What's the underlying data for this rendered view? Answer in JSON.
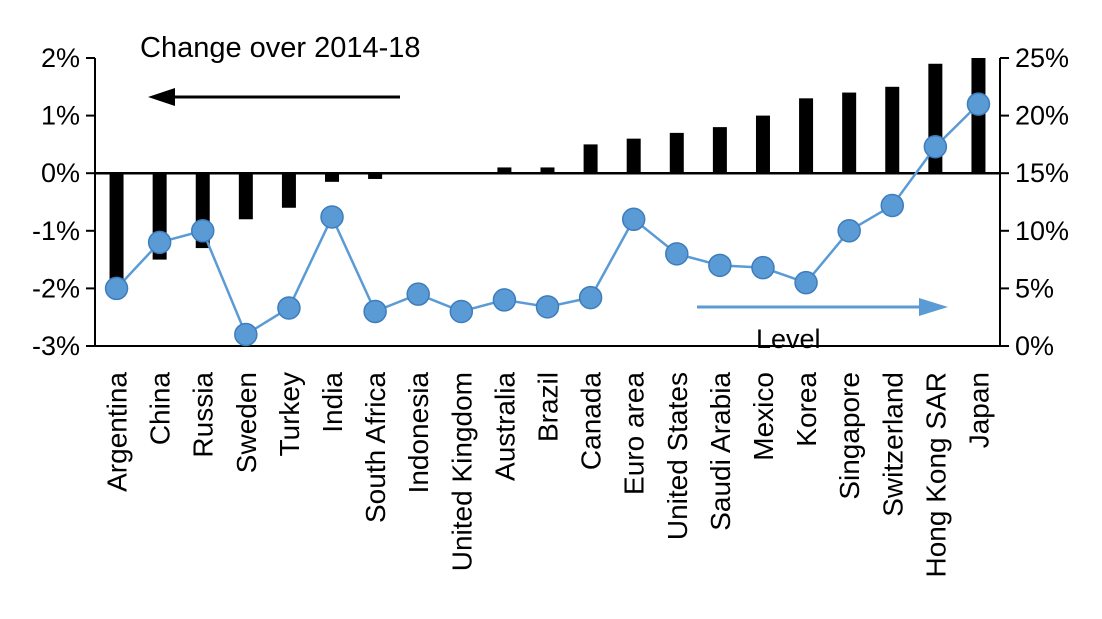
{
  "chart_data": {
    "type": "bar",
    "subtype": "bar-line-combo",
    "title": "",
    "categories": [
      "Argentina",
      "China",
      "Russia",
      "Sweden",
      "Turkey",
      "India",
      "South Africa",
      "Indonesia",
      "United Kingdom",
      "Australia",
      "Brazil",
      "Canada",
      "Euro area",
      "United States",
      "Saudi Arabia",
      "Mexico",
      "Korea",
      "Singapore",
      "Switzerland",
      "Hong Kong SAR",
      "Japan"
    ],
    "series": [
      {
        "name": "Change over 2014-18",
        "type": "bar",
        "axis": "left",
        "color": "#000000",
        "values": [
          -1.9,
          -1.5,
          -1.3,
          -0.8,
          -0.6,
          -0.15,
          -0.1,
          0,
          0,
          0.1,
          0.1,
          0.5,
          0.6,
          0.7,
          0.8,
          1.0,
          1.3,
          1.4,
          1.5,
          1.9,
          2.0
        ]
      },
      {
        "name": "Level",
        "type": "line",
        "axis": "right",
        "color": "#5B9BD5",
        "values": [
          5.0,
          9.0,
          10.0,
          1.0,
          3.3,
          11.2,
          3.0,
          4.5,
          3.0,
          4.0,
          3.4,
          4.2,
          11.0,
          8.0,
          7.0,
          6.8,
          5.5,
          10.0,
          12.2,
          17.3,
          21.0
        ]
      }
    ],
    "left_axis": {
      "ticks": [
        "2%",
        "1%",
        "0%",
        "-1%",
        "-2%",
        "-3%"
      ],
      "values": [
        2,
        1,
        0,
        -1,
        -2,
        -3
      ],
      "min": -3,
      "max": 2
    },
    "right_axis": {
      "ticks": [
        "25%",
        "20%",
        "15%",
        "10%",
        "5%",
        "0%"
      ],
      "values": [
        25,
        20,
        15,
        10,
        5,
        0
      ],
      "min": 0,
      "max": 25
    },
    "annotations": {
      "change_label": "Change over 2014-18",
      "level_label": "Level"
    },
    "layout": {
      "grid": false,
      "zero_line": true,
      "category_labels_rotated_90": true
    },
    "colors": {
      "bar": "#000000",
      "line": "#5B9BD5",
      "axis": "#000000"
    }
  }
}
